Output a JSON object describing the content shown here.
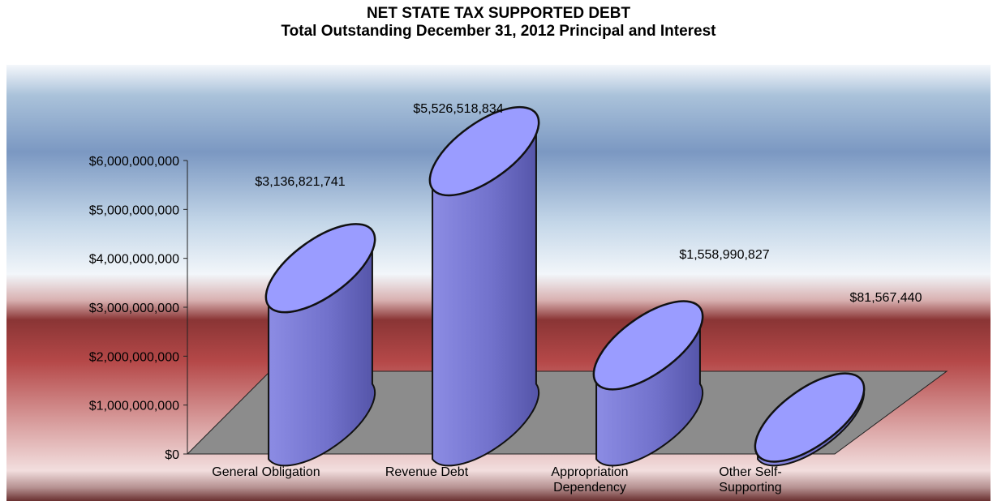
{
  "chart_data": {
    "type": "bar",
    "title": "NET STATE TAX SUPPORTED DEBT",
    "subtitle": "Total Outstanding December 31, 2012 Principal and Interest",
    "categories": [
      [
        "General Obligation"
      ],
      [
        "Revenue Debt"
      ],
      [
        "Appropriation",
        "Dependency"
      ],
      [
        "Other Self-",
        "Supporting"
      ]
    ],
    "values": [
      3136821741,
      5526518834,
      1558990827,
      81567440
    ],
    "value_labels": [
      "$3,136,821,741",
      "$5,526,518,834",
      "$1,558,990,827",
      "$81,567,440"
    ],
    "yticks": [
      0,
      1000000000,
      2000000000,
      3000000000,
      4000000000,
      5000000000,
      6000000000
    ],
    "ytick_labels": [
      "$0",
      "$1,000,000,000",
      "$2,000,000,000",
      "$3,000,000,000",
      "$4,000,000,000",
      "$5,000,000,000",
      "$6,000,000,000"
    ],
    "ylim": [
      0,
      6000000000
    ],
    "xlabel": "",
    "ylabel": "",
    "grid": false,
    "legend": "none",
    "colors": {
      "cylinder_side": "#7b7bd6",
      "cylinder_top": "#9a9cff",
      "floor": "#8c8c8c"
    }
  }
}
